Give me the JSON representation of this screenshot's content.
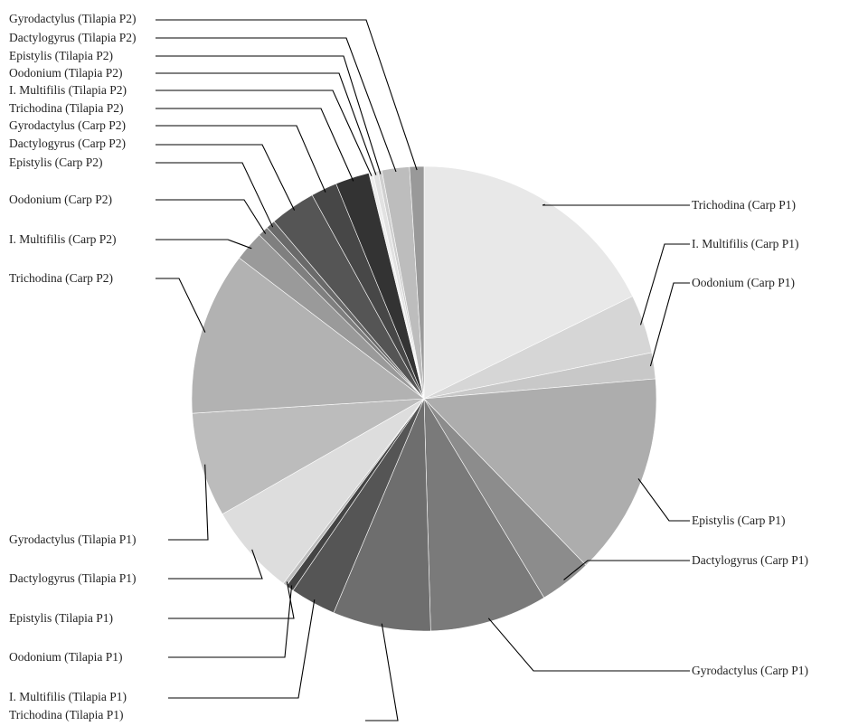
{
  "chart_data": {
    "type": "pie",
    "title": "",
    "slices": [
      {
        "label": "Trichodina (Carp P1)",
        "value": 19.5,
        "color": "#e8e8e8"
      },
      {
        "label": "I. Multifilis (Carp P1)",
        "value": 4.5,
        "color": "#d6d6d6"
      },
      {
        "label": "Oodonium (Carp P1)",
        "value": 2.0,
        "color": "#c8c8c8"
      },
      {
        "label": "Epistylis (Carp P1)",
        "value": 15.5,
        "color": "#adadad"
      },
      {
        "label": "Dactylogyrus (Carp P1)",
        "value": 4.0,
        "color": "#8c8c8c"
      },
      {
        "label": "Gyrodactylus (Carp P1)",
        "value": 9.0,
        "color": "#7a7a7a"
      },
      {
        "label": "Trichodina (Tilapia P1)",
        "value": 7.5,
        "color": "#6e6e6e"
      },
      {
        "label": "I. Multifilis (Tilapia P1)",
        "value": 3.5,
        "color": "#555555"
      },
      {
        "label": "Oodonium (Tilapia P1)",
        "value": 0.6,
        "color": "#444444"
      },
      {
        "label": "Epistylis (Tilapia P1)",
        "value": 0.3,
        "color": "#bbbbbb"
      },
      {
        "label": "Dactylogyrus (Tilapia P1)",
        "value": 7.0,
        "color": "#dddddd"
      },
      {
        "label": "Gyrodactylus (Tilapia P1)",
        "value": 8.0,
        "color": "#bcbcbc"
      },
      {
        "label": "Trichodina (Carp P2)",
        "value": 12.5,
        "color": "#b2b2b2"
      },
      {
        "label": "I. Multifilis (Carp P2)",
        "value": 2.3,
        "color": "#9a9a9a"
      },
      {
        "label": "Oodonium (Carp P2)",
        "value": 0.8,
        "color": "#7f7f7f"
      },
      {
        "label": "Epistylis (Carp P2)",
        "value": 0.7,
        "color": "#6a6a6a"
      },
      {
        "label": "Dactylogyrus (Carp P2)",
        "value": 3.5,
        "color": "#555555"
      },
      {
        "label": "Gyrodactylus (Carp P2)",
        "value": 2.0,
        "color": "#474747"
      },
      {
        "label": "Trichodina (Tilapia P2)",
        "value": 2.6,
        "color": "#333333"
      },
      {
        "label": "I. Multifilis (Tilapia P2)",
        "value": 0.3,
        "color": "#eeeeee"
      },
      {
        "label": "Oodonium (Tilapia P2)",
        "value": 0.4,
        "color": "#e2e2e2"
      },
      {
        "label": "Epistylis (Tilapia P2)",
        "value": 0.3,
        "color": "#d0d0d0"
      },
      {
        "label": "Dactylogyrus (Tilapia P2)",
        "value": 2.1,
        "color": "#bdbdbd"
      },
      {
        "label": "Gyrodactylus (Tilapia P2)",
        "value": 1.1,
        "color": "#999999"
      }
    ]
  }
}
